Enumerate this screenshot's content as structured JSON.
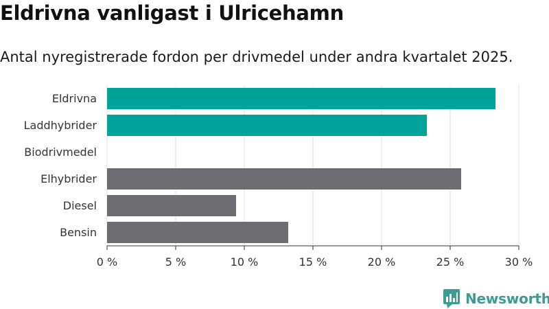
{
  "title": "Eldrivna vanligast i Ulricehamn",
  "subtitle": "Antal nyregistrerade fordon per drivmedel under andra kvartalet 2025.",
  "brand": {
    "name": "Newsworthy"
  },
  "colors": {
    "highlight": "#00a39a",
    "neutral": "#6d6c73",
    "grid": "#e2e2e2",
    "brand": "#3c9c94"
  },
  "chart_data": {
    "type": "bar",
    "orientation": "horizontal",
    "categories": [
      "Eldrivna",
      "Laddhybrider",
      "Biodrivmedel",
      "Elhybrider",
      "Diesel",
      "Bensin"
    ],
    "values": [
      28.3,
      23.3,
      0,
      25.8,
      9.4,
      13.2
    ],
    "highlighted": [
      true,
      true,
      false,
      false,
      false,
      false
    ],
    "xlim": [
      0,
      30
    ],
    "xticks": [
      0,
      5,
      10,
      15,
      20,
      25,
      30
    ],
    "xtick_labels": [
      "0 %",
      "5 %",
      "10 %",
      "15 %",
      "20 %",
      "25 %",
      "30 %"
    ],
    "grid": true,
    "title": "Eldrivna vanligast i Ulricehamn",
    "xlabel": "",
    "ylabel": ""
  }
}
